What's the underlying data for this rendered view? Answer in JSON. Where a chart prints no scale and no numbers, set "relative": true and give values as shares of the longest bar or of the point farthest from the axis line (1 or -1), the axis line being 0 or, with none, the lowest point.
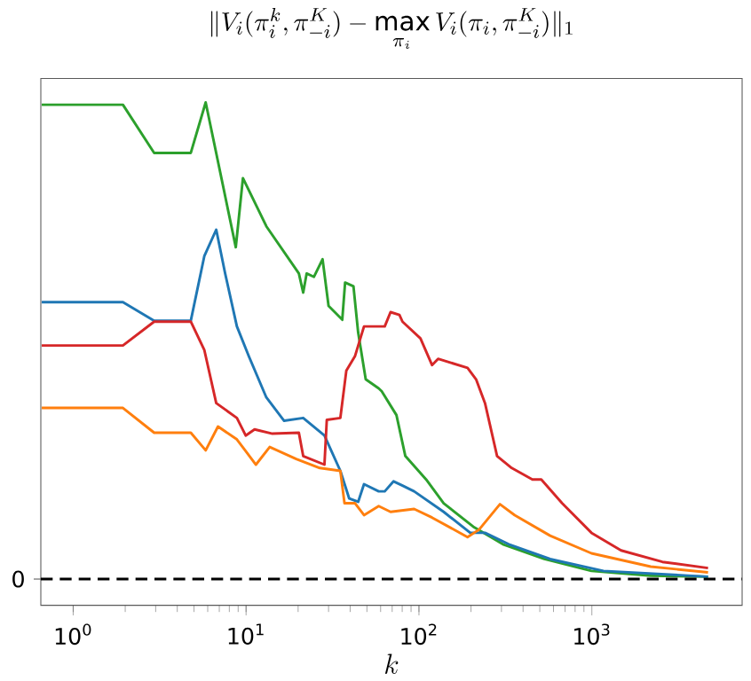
{
  "chart_data": {
    "type": "line",
    "relative": true,
    "title": "\\|V_i(\\pi_i^k, \\pi_{-i}^K) - \\max\\limits_{\\pi_i} V_i(\\pi_i, \\pi_{-i}^K)\\|_1",
    "xlabel": "k",
    "log": "x",
    "xlim": [
      0.65,
      7400
    ],
    "xticks": [
      {
        "value": 1,
        "label": "10$^{0}$"
      },
      {
        "value": 10,
        "label": "10$^{1}$"
      },
      {
        "value": 100,
        "label": "10$^{2}$"
      },
      {
        "value": 1000,
        "label": "10$^{3}$"
      }
    ],
    "grid": false,
    "marker": "none",
    "line_style": "solid",
    "ref_lines": [
      {
        "axis": "y",
        "value": 0,
        "label": "0",
        "color": "#000000",
        "line_style": "dashed"
      }
    ],
    "series": [
      {
        "color": "#2ca02c",
        "x": [
          0.658,
          1.94,
          2.94,
          4.79,
          5.84,
          8.72,
          9.59,
          13.1,
          20.2,
          21.4,
          22.4,
          24.7,
          27.7,
          30.0,
          36.0,
          37.4,
          41.8,
          44.5,
          49.2,
          58.5,
          60.9,
          74.1,
          83.4,
          110,
          139,
          206,
          306,
          531,
          995,
          2190,
          4700
        ],
        "values": [
          0.995,
          0.995,
          0.894,
          0.894,
          1.0,
          0.696,
          0.841,
          0.74,
          0.641,
          0.601,
          0.641,
          0.634,
          0.671,
          0.573,
          0.544,
          0.622,
          0.614,
          0.517,
          0.419,
          0.4,
          0.394,
          0.344,
          0.258,
          0.209,
          0.159,
          0.11,
          0.073,
          0.042,
          0.017,
          0.007,
          0.005
        ]
      },
      {
        "color": "#1f77b4",
        "x": [
          0.658,
          1.94,
          2.94,
          4.79,
          5.74,
          6.72,
          7.57,
          8.85,
          10.36,
          13.1,
          16.6,
          21.4,
          28.4,
          35.1,
          39.5,
          44.5,
          48.1,
          58.5,
          63.4,
          71.3,
          80.3,
          93.8,
          139,
          198,
          241,
          331,
          574,
          1167,
          4700
        ],
        "values": [
          0.581,
          0.581,
          0.542,
          0.542,
          0.678,
          0.733,
          0.641,
          0.53,
          0.468,
          0.381,
          0.332,
          0.338,
          0.301,
          0.227,
          0.169,
          0.162,
          0.199,
          0.184,
          0.184,
          0.205,
          0.196,
          0.184,
          0.141,
          0.097,
          0.097,
          0.073,
          0.042,
          0.017,
          0.005
        ]
      },
      {
        "color": "#d62728",
        "x": [
          0.658,
          1.94,
          2.94,
          4.79,
          5.74,
          6.72,
          8.85,
          9.95,
          11.2,
          14.2,
          20.2,
          21.4,
          28.4,
          29.3,
          35.1,
          38.0,
          42.7,
          48.1,
          58.5,
          63.4,
          68.5,
          77.1,
          80.3,
          102,
          119,
          129,
          191,
          214,
          241,
          283,
          344,
          453,
          510,
          673,
          995,
          1476,
          2560,
          4700
        ],
        "values": [
          0.49,
          0.49,
          0.54,
          0.54,
          0.48,
          0.369,
          0.338,
          0.301,
          0.314,
          0.305,
          0.307,
          0.258,
          0.24,
          0.334,
          0.338,
          0.437,
          0.468,
          0.53,
          0.53,
          0.53,
          0.56,
          0.554,
          0.54,
          0.505,
          0.449,
          0.462,
          0.443,
          0.419,
          0.369,
          0.258,
          0.233,
          0.209,
          0.209,
          0.159,
          0.097,
          0.06,
          0.036,
          0.023
        ]
      },
      {
        "color": "#ff7f0e",
        "x": [
          0.658,
          1.94,
          2.94,
          4.79,
          5.84,
          6.88,
          8.85,
          11.4,
          13.7,
          19.5,
          26.7,
          35.1,
          37.1,
          42.7,
          48.1,
          58.5,
          68.5,
          93.8,
          119,
          191,
          223,
          294,
          358,
          574,
          995,
          2190,
          4700
        ],
        "values": [
          0.359,
          0.359,
          0.307,
          0.307,
          0.27,
          0.32,
          0.293,
          0.24,
          0.277,
          0.252,
          0.233,
          0.227,
          0.159,
          0.159,
          0.134,
          0.153,
          0.141,
          0.147,
          0.129,
          0.088,
          0.104,
          0.157,
          0.134,
          0.091,
          0.054,
          0.026,
          0.014
        ]
      }
    ]
  }
}
